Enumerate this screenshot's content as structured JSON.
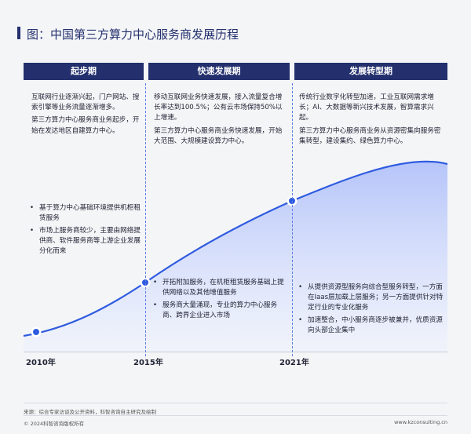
{
  "title": "图：中国第三方算力中心服务商发展历程",
  "phases": [
    {
      "name": "起步期",
      "paragraphs": [
        "互联网行业逐渐兴起，门户网站、搜索引擎等业务流量逐渐增多。",
        "第三方算力中心服务商业务起步，开始在发达地区自建算力中心。"
      ],
      "bullets": [
        "基于算力中心基础环境提供机柜租赁服务",
        "市场上服务商较少，主要由网络提供商、软件服务商等上游企业发展分化而来"
      ]
    },
    {
      "name": "快速发展期",
      "paragraphs": [
        "移动互联网业务快速发展，接入流量复合增长率达到100.5%；公有云市场保持50%以上增速。",
        "第三方算力中心服务商业务快速发展，开始大范围、大规模建设算力中心。"
      ],
      "bullets": [
        "开拓附加服务，在机柜租赁服务基础上提供网络以及其他增值服务",
        "服务商大量涌现，专业的算力中心服务商、跨界企业进入市场"
      ]
    },
    {
      "name": "发展转型期",
      "paragraphs": [
        "传统行业数字化转型加速，工业互联网需求增长；AI、大数据等新兴技术发展，智算需求兴起。",
        "第三方算力中心服务商业务从资源密集向服务密集转型，建设集约、绿色算力中心。"
      ],
      "bullets": [
        "从提供资源型服务向综合型服务转型，一方面在Iaas层加载上层服务；另一方面提供针对特定行业的专业化服务",
        "加速整合，中小服务商逐步被兼并，优质资源向头部企业集中"
      ]
    }
  ],
  "years": [
    "2010年",
    "2015年",
    "2021年"
  ],
  "footer": {
    "source": "来源：综合专家访谈及公开资料，科智咨询自主研究及绘制",
    "copyright": "© 2024科智咨询版权所有",
    "website": "www.kzconsulting.cn"
  },
  "colors": {
    "navy": "#23306d",
    "accent": "#2f5be0",
    "fill": "#c9d6fb"
  }
}
